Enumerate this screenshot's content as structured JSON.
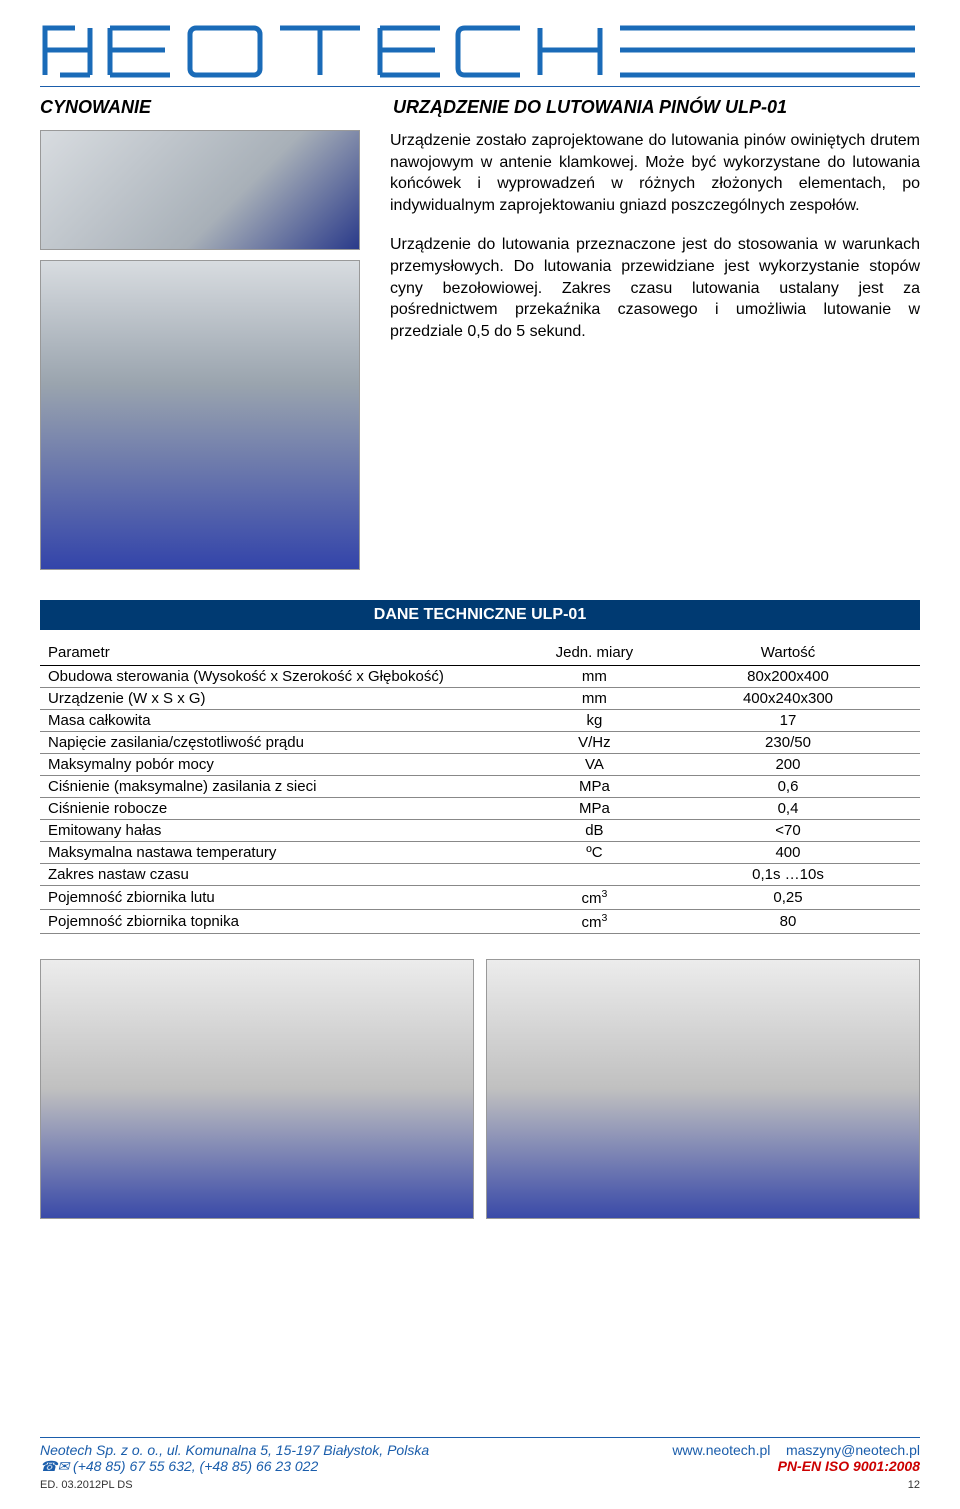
{
  "logo": {
    "text": "NEOTECH",
    "color": "#1a6bb8",
    "background": "#ffffff"
  },
  "header": {
    "category": "CYNOWANIE",
    "title": "URZĄDZENIE DO LUTOWANIA PINÓW  ULP-01"
  },
  "intro": {
    "para1": "Urządzenie zostało zaprojektowane do lutowania pinów owiniętych drutem nawojowym w antenie klamkowej. Może być wykorzystane do lutowania końcówek i wyprowadzeń w różnych złożonych elementach, po indywidualnym zaprojektowaniu gniazd poszczególnych zespołów.",
    "para2": "Urządzenie do lutowania przeznaczone jest do stosowania w warunkach przemysłowych. Do lutowania przewidziane jest wykorzystanie stopów cyny bezołowiowej. Zakres czasu lutowania ustalany jest za pośrednictwem przekaźnika czasowego i umożliwia lutowanie w przedziale 0,5 do 5 sekund."
  },
  "techTable": {
    "title": "DANE TECHNICZNE ULP-01",
    "headers": {
      "param": "Parametr",
      "unit": "Jedn. miary",
      "value": "Wartość"
    },
    "rows": [
      {
        "param": "Obudowa sterowania (Wysokość x Szerokość x Głębokość)",
        "unit": "mm",
        "value": "80x200x400"
      },
      {
        "param": "Urządzenie (W x S x G)",
        "unit": "mm",
        "value": "400x240x300"
      },
      {
        "param": "Masa całkowita",
        "unit": "kg",
        "value": "17"
      },
      {
        "param": "Napięcie zasilania/częstotliwość prądu",
        "unit": "V/Hz",
        "value": "230/50"
      },
      {
        "param": "Maksymalny pobór mocy",
        "unit": "VA",
        "value": "200"
      },
      {
        "param": "Ciśnienie (maksymalne) zasilania z sieci",
        "unit": "MPa",
        "value": "0,6"
      },
      {
        "param": "Ciśnienie robocze",
        "unit": "MPa",
        "value": "0,4"
      },
      {
        "param": "Emitowany hałas",
        "unit": "dB",
        "value": "<70"
      },
      {
        "param": "Maksymalna nastawa temperatury",
        "unit": "ºC",
        "value": "400"
      },
      {
        "param": "Zakres nastaw czasu",
        "unit": "",
        "value": "0,1s …10s"
      },
      {
        "param": "Pojemność zbiornika lutu",
        "unit": "cm³",
        "value": "0,25",
        "unitHtml": "cm<sup>3</sup>"
      },
      {
        "param": "Pojemność zbiornika topnika",
        "unit": "cm³",
        "value": "80",
        "unitHtml": "cm<sup>3</sup>"
      }
    ]
  },
  "footer": {
    "company": "Neotech Sp. z o. o., ul. Komunalna 5, 15-197 Białystok, Polska",
    "phones": "☎✉ (+48 85) 67 55 632,     (+48 85) 66 23 022",
    "web": "www.neotech.pl",
    "email": "maszyny@neotech.pl",
    "iso": "PN-EN ISO 9001:2008",
    "edition": "ED. 03.2012PL DS",
    "page": "12"
  },
  "colors": {
    "brand_blue": "#1a6bb8",
    "dark_blue": "#003a72",
    "link_blue": "#1a5dab",
    "iso_red": "#cc0000",
    "border_gray": "#888888"
  }
}
